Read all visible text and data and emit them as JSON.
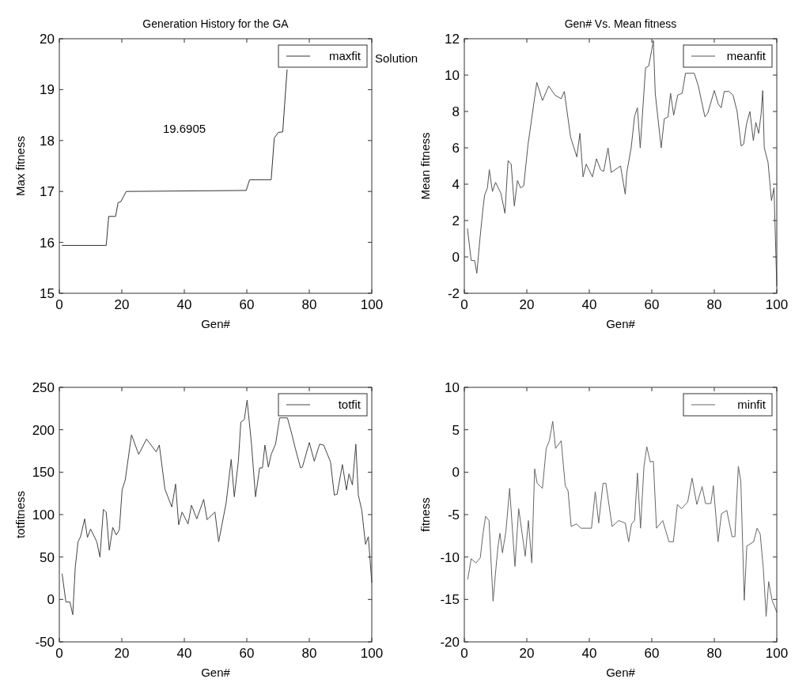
{
  "chart_data": [
    {
      "type": "line",
      "title": "Generation History for the GA",
      "xlabel": "Gen#",
      "ylabel": "Max fitness",
      "xlim": [
        0,
        100
      ],
      "xticks": [
        0,
        20,
        40,
        60,
        80,
        100
      ],
      "ylim": [
        15,
        20
      ],
      "yticks": [
        15,
        16,
        17,
        18,
        19,
        20
      ],
      "legend": "top right",
      "annotations": [
        "19.6905",
        "Solution"
      ],
      "x": [
        0.9,
        15,
        15.8,
        18,
        18.8,
        19.7,
        21.4,
        59.8,
        60.9,
        67.8,
        68.8,
        70.1,
        71.5,
        72.1,
        72.9
      ],
      "series": [
        {
          "name": "maxfit",
          "color": "#333333",
          "values": [
            15.94,
            15.94,
            16.51,
            16.51,
            16.78,
            16.8,
            17.0,
            17.02,
            17.23,
            17.23,
            18.05,
            18.16,
            18.17,
            18.7,
            19.39
          ]
        }
      ]
    },
    {
      "type": "line",
      "title": "Gen# Vs. Mean fitness",
      "xlabel": "Gen#",
      "ylabel": "Mean fitness",
      "xlim": [
        0,
        100
      ],
      "xticks": [
        0,
        20,
        40,
        60,
        80,
        100
      ],
      "ylim": [
        -2,
        12
      ],
      "yticks": [
        -2,
        0,
        2,
        4,
        6,
        8,
        10,
        12
      ],
      "legend": "top right",
      "x": [
        1,
        2.2,
        3.3,
        4,
        5,
        6,
        6.5,
        7.4,
        8,
        9,
        10,
        11.7,
        13,
        14,
        15,
        16,
        17,
        18,
        19,
        20.4,
        23.2,
        25,
        27,
        29,
        31,
        32,
        34,
        36,
        37,
        38,
        39,
        41,
        42.3,
        43.6,
        44.6,
        46,
        47,
        50,
        51.5,
        52,
        53.4,
        54.5,
        55.4,
        56.3,
        58,
        59,
        60,
        60.5,
        61.1,
        63,
        64,
        65.2,
        66,
        67,
        68.3,
        69.7,
        70.8,
        73.6,
        74.9,
        77,
        77.9,
        80,
        81.3,
        82.2,
        83.2,
        84.7,
        86,
        87.3,
        88.6,
        89.4,
        90.3,
        91.4,
        92.5,
        93.3,
        94.2,
        95,
        95.5,
        96,
        97.2,
        98.3,
        99.1,
        100
      ],
      "series": [
        {
          "name": "meanfit",
          "color": "#555555",
          "values": [
            1.55,
            -0.2,
            -0.2,
            -0.9,
            1,
            2.7,
            3.4,
            3.8,
            4.8,
            3.6,
            4.1,
            3.5,
            2.4,
            5.3,
            5.1,
            2.8,
            4.2,
            3.8,
            3.9,
            6.2,
            9.6,
            8.6,
            9.4,
            8.9,
            8.7,
            9.1,
            6.6,
            5.5,
            6.8,
            4.4,
            5.1,
            4.4,
            5.4,
            4.8,
            4.7,
            6,
            4.65,
            5,
            3.45,
            4.65,
            6,
            7.75,
            8.2,
            6,
            10.4,
            10.5,
            11.4,
            11.9,
            9,
            6,
            7.6,
            7.7,
            9,
            7.8,
            8.9,
            9,
            10.1,
            10.1,
            9.4,
            7.7,
            7.9,
            9.15,
            8.4,
            8.2,
            9.1,
            9.1,
            8.9,
            8,
            6.1,
            6.2,
            7.3,
            8,
            6.4,
            7.4,
            6.8,
            7.9,
            9.15,
            6,
            5.2,
            3.1,
            3.8,
            -1.6
          ]
        }
      ]
    },
    {
      "type": "line",
      "xlabel": "Gen#",
      "ylabel": "totfitness",
      "xlim": [
        0,
        100
      ],
      "xticks": [
        0,
        20,
        40,
        60,
        80,
        100
      ],
      "ylim": [
        -50,
        250
      ],
      "yticks": [
        -50,
        0,
        50,
        100,
        150,
        200,
        250
      ],
      "legend": "top right",
      "x": [
        0.9,
        2.1,
        3.4,
        4.3,
        5.1,
        6,
        6.8,
        8.1,
        9,
        10,
        12,
        13,
        14.1,
        15,
        16,
        17.1,
        18.2,
        19.2,
        20.1,
        21.1,
        23.1,
        25.4,
        27.9,
        31,
        32,
        33.8,
        36,
        37.2,
        38.2,
        39.3,
        41.2,
        42.3,
        44,
        46.2,
        47.3,
        49.8,
        51,
        53.4,
        55,
        56,
        57.3,
        58.1,
        59.2,
        60.1,
        61.5,
        62.8,
        64.1,
        65,
        65.8,
        66.9,
        67.8,
        69.2,
        70.5,
        73,
        74.4,
        75.6,
        77.2,
        77.8,
        80,
        81.6,
        83.3,
        84.6,
        86.8,
        88,
        88.9,
        90.6,
        91.9,
        92.7,
        93.8,
        94.9,
        95.7,
        96.8,
        98,
        98.9,
        100
      ],
      "series": [
        {
          "name": "totfit",
          "color": "#444444",
          "values": [
            30,
            -3,
            -3,
            -18,
            38,
            68,
            74,
            95,
            73,
            83,
            68,
            50,
            106,
            103,
            58,
            85,
            76,
            82,
            129,
            141,
            194,
            171,
            189,
            174,
            182,
            130,
            109,
            136,
            88,
            103,
            89,
            111,
            95,
            118,
            94,
            103,
            68,
            114,
            165,
            121,
            163,
            209,
            212,
            235,
            183,
            121,
            155,
            155,
            182,
            156,
            171,
            183,
            214,
            214,
            195,
            177,
            155,
            156,
            185,
            163,
            183,
            182,
            162,
            123,
            124,
            159,
            129,
            148,
            135,
            183,
            123,
            105,
            65,
            74,
            20
          ]
        }
      ]
    },
    {
      "type": "line",
      "xlabel": "Gen#",
      "ylabel": "fitness",
      "xlim": [
        0,
        100
      ],
      "xticks": [
        0,
        20,
        40,
        60,
        80,
        100
      ],
      "ylim": [
        -20,
        10
      ],
      "yticks": [
        -20,
        -15,
        -10,
        -5,
        0,
        5,
        10
      ],
      "legend": "top right",
      "x": [
        1.1,
        2.2,
        3.7,
        5.1,
        6,
        6.8,
        7.9,
        9.2,
        10.1,
        10.8,
        11.4,
        12.2,
        13.3,
        14.5,
        15.2,
        16.2,
        17.4,
        19.5,
        20.5,
        21.6,
        22.5,
        23.3,
        25,
        26.2,
        27.2,
        28.3,
        29.2,
        31,
        32.3,
        33.2,
        34.2,
        35.9,
        37.3,
        40.7,
        41.9,
        43,
        44.4,
        45.3,
        47.3,
        49.4,
        51.5,
        52.6,
        53.5,
        54.5,
        55.4,
        56.4,
        57.5,
        58.4,
        59.5,
        60.5,
        61.5,
        63.5,
        65.5,
        66.9,
        68.2,
        69.5,
        71.5,
        72.9,
        74.4,
        76.1,
        77.2,
        78.9,
        79.7,
        81.2,
        82.3,
        84,
        85.7,
        86.6,
        87.7,
        88.5,
        89.6,
        90.4,
        92.6,
        93.7,
        94.7,
        95.7,
        96.6,
        97.4,
        98.5,
        100
      ],
      "series": [
        {
          "name": "minfit",
          "color": "#666666",
          "values": [
            -12.6,
            -10.2,
            -10.7,
            -10.1,
            -7.2,
            -5.2,
            -5.7,
            -15.2,
            -11.4,
            -8.7,
            -7.2,
            -9.5,
            -7,
            -1.9,
            -5.7,
            -11.1,
            -4.3,
            -9.9,
            -5.7,
            -10.7,
            0.4,
            -1.3,
            -1.9,
            2.8,
            3.7,
            6,
            2.8,
            3.7,
            -1.6,
            -2.2,
            -6.4,
            -6.1,
            -6.6,
            -6.6,
            -2.3,
            -6,
            -1.3,
            -1.3,
            -6.4,
            -5.7,
            -6,
            -8.2,
            -6.1,
            -5.7,
            -0.1,
            -6.6,
            0.7,
            3,
            1.2,
            1.3,
            -6.6,
            -5.7,
            -8.2,
            -8.2,
            -3.8,
            -4.3,
            -3.5,
            -0.7,
            -3.8,
            -1.7,
            -3.7,
            -3.7,
            -1.6,
            -8.2,
            -4.9,
            -4.5,
            -7.6,
            -7.6,
            0.7,
            -1.1,
            -15.1,
            -8.7,
            -8.2,
            -6.6,
            -7.3,
            -11.4,
            -17,
            -12.9,
            -15.1,
            -16.5
          ]
        }
      ]
    }
  ]
}
